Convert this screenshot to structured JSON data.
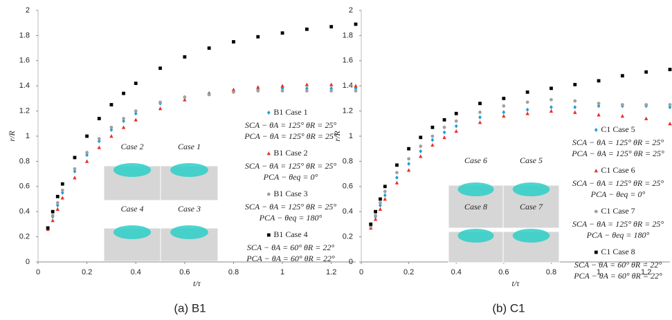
{
  "chart_data": [
    {
      "type": "scatter",
      "caption": "(a) B1",
      "xlabel": "t/τ",
      "ylabel": "r/R",
      "xlim": [
        0,
        1.3
      ],
      "ylim": [
        0,
        2
      ],
      "xticks": [
        0,
        0.2,
        0.4,
        0.6,
        0.8,
        1,
        1.2
      ],
      "yticks": [
        0,
        0.2,
        0.4,
        0.6,
        0.8,
        1,
        1.2,
        1.4,
        1.6,
        1.8,
        2
      ],
      "x": [
        0.04,
        0.06,
        0.08,
        0.1,
        0.15,
        0.2,
        0.25,
        0.3,
        0.35,
        0.4,
        0.5,
        0.6,
        0.7,
        0.8,
        0.9,
        1.0,
        1.1,
        1.2,
        1.3
      ],
      "inset_labels": [
        "Case 2",
        "Case 1",
        "Case 4",
        "Case 3"
      ],
      "series": [
        {
          "name": "B1 Case 1",
          "color": "#1fa0d8",
          "marker": "diamond",
          "notes": [
            "SCA − θA = 125° θR = 25°",
            "PCA − θA = 125° θR = 25°"
          ],
          "values": [
            0.27,
            0.36,
            0.45,
            0.55,
            0.72,
            0.85,
            0.96,
            1.05,
            1.12,
            1.18,
            1.26,
            1.31,
            1.34,
            1.36,
            1.37,
            1.38,
            1.38,
            1.38,
            1.38
          ]
        },
        {
          "name": "B1 Case 2",
          "color": "#e8302a",
          "marker": "triangle",
          "notes": [
            "SCA − θA = 125° θR = 25°",
            "PCA − θeq = 0°"
          ],
          "values": [
            0.26,
            0.33,
            0.42,
            0.51,
            0.67,
            0.8,
            0.91,
            1.0,
            1.07,
            1.13,
            1.22,
            1.29,
            1.34,
            1.37,
            1.39,
            1.4,
            1.41,
            1.41,
            1.4
          ]
        },
        {
          "name": "B1 Case 3",
          "color": "#a0a0a0",
          "marker": "circle",
          "notes": [
            "SCA − θA = 125° θR = 25°",
            "PCA − θeq = 180°"
          ],
          "values": [
            0.27,
            0.37,
            0.47,
            0.57,
            0.74,
            0.87,
            0.98,
            1.07,
            1.14,
            1.2,
            1.27,
            1.31,
            1.33,
            1.35,
            1.36,
            1.36,
            1.36,
            1.36,
            1.36
          ]
        },
        {
          "name": "B1 Case 4",
          "color": "#000000",
          "marker": "square",
          "notes": [
            "SCA − θA = 60° θR = 22°",
            "PCA − θA = 60° θR = 22°"
          ],
          "values": [
            0.27,
            0.4,
            0.52,
            0.62,
            0.83,
            1.0,
            1.14,
            1.25,
            1.34,
            1.42,
            1.54,
            1.63,
            1.7,
            1.75,
            1.79,
            1.82,
            1.85,
            1.87,
            1.89
          ]
        }
      ]
    },
    {
      "type": "scatter",
      "caption": "(b) C1",
      "xlabel": "t/τ",
      "ylabel": "r/R",
      "xlim": [
        0,
        1.3
      ],
      "ylim": [
        0,
        2
      ],
      "xticks": [
        0,
        0.2,
        0.4,
        0.6,
        0.8,
        1,
        1.2
      ],
      "yticks": [
        0,
        0.2,
        0.4,
        0.6,
        0.8,
        1,
        1.2,
        1.4,
        1.6,
        1.8,
        2
      ],
      "x": [
        0.04,
        0.06,
        0.08,
        0.1,
        0.15,
        0.2,
        0.25,
        0.3,
        0.35,
        0.4,
        0.5,
        0.6,
        0.7,
        0.8,
        0.9,
        1.0,
        1.1,
        1.2,
        1.3
      ],
      "inset_labels": [
        "Case 6",
        "Case 5",
        "Case 8",
        "Case 7"
      ],
      "series": [
        {
          "name": "C1 Case 5",
          "color": "#1fa0d8",
          "marker": "diamond",
          "notes": [
            "SCA − θA = 125° θR = 25°",
            "PCA − θA = 125° θR = 25°"
          ],
          "values": [
            0.28,
            0.36,
            0.45,
            0.53,
            0.67,
            0.78,
            0.88,
            0.97,
            1.03,
            1.08,
            1.15,
            1.19,
            1.21,
            1.23,
            1.23,
            1.24,
            1.24,
            1.24,
            1.23
          ]
        },
        {
          "name": "C1 Case 6",
          "color": "#e8302a",
          "marker": "triangle",
          "notes": [
            "SCA − θA = 125° θR = 25°",
            "PCA − θeq = 0°"
          ],
          "values": [
            0.27,
            0.34,
            0.42,
            0.5,
            0.63,
            0.73,
            0.84,
            0.93,
            0.99,
            1.04,
            1.11,
            1.16,
            1.18,
            1.2,
            1.19,
            1.17,
            1.16,
            1.14,
            1.1
          ]
        },
        {
          "name": "C1 Case 7",
          "color": "#a0a0a0",
          "marker": "circle",
          "notes": [
            "SCA − θA = 125° θR = 25°",
            "PCA − θeq = 180°"
          ],
          "values": [
            0.28,
            0.37,
            0.47,
            0.56,
            0.71,
            0.82,
            0.92,
            1.0,
            1.07,
            1.12,
            1.19,
            1.24,
            1.27,
            1.29,
            1.28,
            1.26,
            1.25,
            1.25,
            1.25
          ]
        },
        {
          "name": "C1 Case 8",
          "color": "#000000",
          "marker": "square",
          "notes": [
            "SCA − θA = 60° θR = 22°",
            "PCA − θA = 60° θR = 22°"
          ],
          "values": [
            0.3,
            0.4,
            0.5,
            0.6,
            0.77,
            0.9,
            0.99,
            1.07,
            1.13,
            1.18,
            1.26,
            1.3,
            1.35,
            1.38,
            1.41,
            1.44,
            1.48,
            1.51,
            1.53
          ]
        }
      ]
    }
  ]
}
